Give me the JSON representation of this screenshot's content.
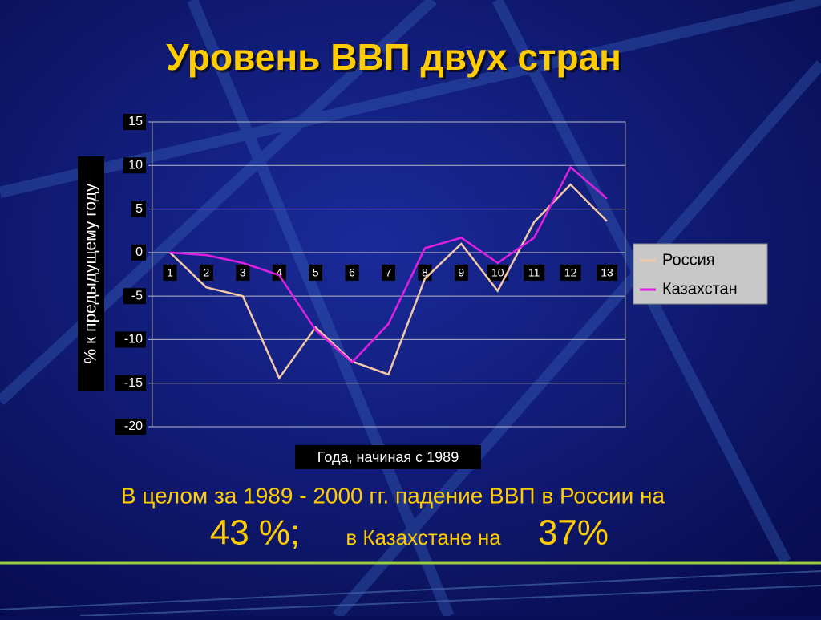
{
  "chart_data": {
    "type": "line",
    "title": "Уровень ВВП двух стран",
    "y_label": "% к предыдущему году",
    "x_label": "Года, начиная с 1989",
    "categories": [
      "1",
      "2",
      "3",
      "4",
      "5",
      "6",
      "7",
      "8",
      "9",
      "10",
      "11",
      "12",
      "13"
    ],
    "series": [
      {
        "name": "Россия",
        "color": "#f3c9a8",
        "values": [
          0,
          -4,
          -5,
          -14.4,
          -8.6,
          -12.5,
          -14,
          -3,
          1,
          -4.4,
          3.5,
          7.8,
          3.6
        ]
      },
      {
        "name": "Казахстан",
        "color": "#e020e0",
        "values": [
          0,
          -0.3,
          -1.2,
          -2.6,
          -8.9,
          -12.6,
          -8.2,
          0.5,
          1.7,
          -1.2,
          1.7,
          9.8,
          6.2
        ]
      }
    ],
    "ylim": [
      -20,
      15
    ],
    "yticks": [
      -20,
      -15,
      -10,
      -5,
      0,
      5,
      10,
      15
    ],
    "grid": true,
    "legend": "right",
    "annotations": [
      "В целом за 1989 - 2000 гг. падение ВВП в России на",
      "43 %;",
      "в Казахстане на",
      "37%"
    ]
  }
}
